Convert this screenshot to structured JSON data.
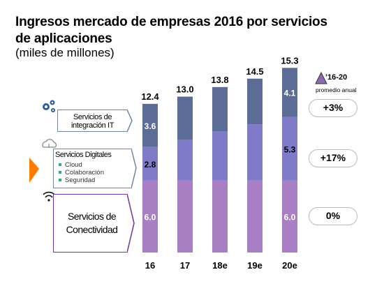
{
  "header": {
    "title_line1": "Ingresos mercado de empresas 2016 por servicios",
    "title_line2": "de aplicaciones",
    "subtitle": "(miles de millones)"
  },
  "legend": {
    "period": "’16-20",
    "label": "promedio anual"
  },
  "segments": [
    {
      "title": "Servicios de integración IT",
      "icon": "gears-icon",
      "growth": "+3%"
    },
    {
      "title": "Servicios Digitales",
      "items": [
        "Cloud",
        "Colaboración",
        "Seguridad"
      ],
      "icon": "cloud-icon",
      "growth": "+17%"
    },
    {
      "title": "Servicios de Conectividad",
      "icon": "wifi-icon",
      "growth": "0%"
    }
  ],
  "colors": {
    "integracion": "#5b6d96",
    "digitales": "#7f7bc9",
    "conectividad": "#a77fc2",
    "box_blue_border": "#6f84a8",
    "box_purple_border": "#7030a0",
    "arrow": "#ff7a00"
  },
  "chart_data": {
    "type": "bar",
    "stacked": true,
    "categories": [
      "16",
      "17",
      "18e",
      "19e",
      "20e"
    ],
    "totals": [
      12.4,
      13.0,
      13.8,
      14.5,
      15.3
    ],
    "series": [
      {
        "name": "Servicios de Conectividad",
        "values": [
          6.0,
          6.0,
          6.0,
          6.0,
          6.0
        ]
      },
      {
        "name": "Servicios Digitales",
        "values": [
          2.8,
          3.4,
          4.1,
          4.7,
          5.3
        ]
      },
      {
        "name": "Servicios de integración IT",
        "values": [
          3.6,
          3.6,
          3.7,
          3.8,
          4.1
        ]
      }
    ],
    "data_labels": [
      {
        "series": 0,
        "index": 0,
        "text": "6.0"
      },
      {
        "series": 0,
        "index": 4,
        "text": "6.0"
      },
      {
        "series": 1,
        "index": 0,
        "text": "2.8"
      },
      {
        "series": 1,
        "index": 4,
        "text": "5.3"
      },
      {
        "series": 2,
        "index": 0,
        "text": "3.6"
      },
      {
        "series": 2,
        "index": 4,
        "text": "4.1"
      }
    ],
    "title": "Ingresos mercado de empresas 2016 por servicios de aplicaciones",
    "ylim": [
      0,
      15.3
    ],
    "grid": false
  }
}
